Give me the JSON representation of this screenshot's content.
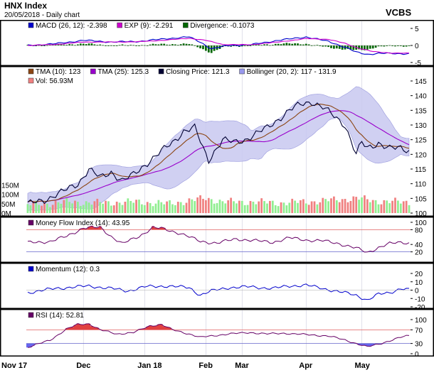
{
  "header": {
    "title": "HNX Index",
    "subtitle": "20/05/2018 - Daily chart",
    "brand": "VCBS"
  },
  "x_axis": {
    "labels": [
      {
        "label": "Nov 17",
        "bar": 0
      },
      {
        "label": "Dec",
        "bar": 20
      },
      {
        "label": "Jan 18",
        "bar": 42
      },
      {
        "label": "Feb",
        "bar": 64
      },
      {
        "label": "Mar",
        "bar": 77
      },
      {
        "label": "Apr",
        "bar": 100
      },
      {
        "label": "May",
        "bar": 120
      }
    ]
  },
  "panels": {
    "macd": {
      "legend": [
        {
          "text": "MACD (26, 12): -2.398",
          "color": "#0000cc"
        },
        {
          "text": "EXP (9): -2.291",
          "color": "#cc00cc"
        },
        {
          "text": "Divergence: -0.1073",
          "color": "#006600"
        }
      ],
      "ticks": [
        "5",
        "0",
        "-5"
      ],
      "range": [
        -5,
        5
      ]
    },
    "price": {
      "legend": [
        {
          "text": "TMA (10): 123",
          "color": "#8b4513"
        },
        {
          "text": "TMA (25): 125.3",
          "color": "#9900cc"
        },
        {
          "text": "Closing Price: 121.3",
          "color": "#000033"
        },
        {
          "text": "Bollinger (20, 2): 117 - 131.9",
          "color": "#9999ee"
        },
        {
          "text": "Vol: 56.93M",
          "color": "#f08080"
        }
      ],
      "price_ticks": [
        "145",
        "140",
        "135",
        "130",
        "125",
        "120",
        "115",
        "110",
        "105",
        "100"
      ],
      "price_range": [
        100,
        145
      ],
      "volume_ticks": [
        "150M",
        "100M",
        "50M",
        "0M"
      ],
      "volume_range": [
        0,
        190
      ]
    },
    "mfi": {
      "legend": [
        {
          "text": "Money Flow Index (14): 43.95",
          "color": "#660066"
        }
      ],
      "ticks": [
        "100",
        "80",
        "40",
        "20"
      ],
      "range": [
        0,
        100
      ]
    },
    "momentum": {
      "legend": [
        {
          "text": "Momentum (12): 0.3",
          "color": "#0000cc"
        }
      ],
      "ticks": [
        "20",
        "10",
        "0",
        "-10",
        "-20"
      ],
      "range": [
        -20,
        20
      ]
    },
    "rsi": {
      "legend": [
        {
          "text": "RSI (14): 52.81",
          "color": "#660066"
        }
      ],
      "ticks": [
        "100",
        "70",
        "30",
        "0"
      ],
      "range": [
        0,
        100
      ]
    }
  },
  "chart_data": {
    "type": "line",
    "bars": 138,
    "close_keypoints": [
      [
        0,
        103
      ],
      [
        6,
        104.5
      ],
      [
        12,
        107
      ],
      [
        18,
        110
      ],
      [
        22,
        115
      ],
      [
        26,
        112
      ],
      [
        30,
        114
      ],
      [
        34,
        111
      ],
      [
        38,
        113
      ],
      [
        44,
        118
      ],
      [
        48,
        121
      ],
      [
        52,
        124
      ],
      [
        56,
        128
      ],
      [
        60,
        129
      ],
      [
        63,
        122
      ],
      [
        65,
        118
      ],
      [
        67,
        121
      ],
      [
        70,
        125
      ],
      [
        74,
        124
      ],
      [
        78,
        125
      ],
      [
        82,
        127
      ],
      [
        86,
        129
      ],
      [
        90,
        132
      ],
      [
        94,
        135
      ],
      [
        98,
        137
      ],
      [
        102,
        138
      ],
      [
        106,
        136
      ],
      [
        110,
        133
      ],
      [
        114,
        130
      ],
      [
        116,
        125
      ],
      [
        118,
        120
      ],
      [
        120,
        124
      ],
      [
        122,
        122
      ],
      [
        126,
        124
      ],
      [
        130,
        122
      ],
      [
        134,
        122
      ],
      [
        137,
        121.3
      ]
    ],
    "volume_keypoints": [
      [
        0,
        45
      ],
      [
        15,
        60
      ],
      [
        25,
        55
      ],
      [
        40,
        60
      ],
      [
        50,
        50
      ],
      [
        60,
        70
      ],
      [
        64,
        80
      ],
      [
        70,
        60
      ],
      [
        80,
        60
      ],
      [
        90,
        55
      ],
      [
        100,
        60
      ],
      [
        110,
        70
      ],
      [
        118,
        80
      ],
      [
        125,
        65
      ],
      [
        137,
        57
      ]
    ],
    "mfi_keypoints": [
      [
        0,
        45
      ],
      [
        8,
        48
      ],
      [
        14,
        62
      ],
      [
        20,
        85
      ],
      [
        26,
        86
      ],
      [
        30,
        62
      ],
      [
        34,
        42
      ],
      [
        40,
        62
      ],
      [
        45,
        86
      ],
      [
        48,
        83
      ],
      [
        55,
        70
      ],
      [
        62,
        48
      ],
      [
        68,
        44
      ],
      [
        75,
        55
      ],
      [
        82,
        50
      ],
      [
        88,
        46
      ],
      [
        94,
        58
      ],
      [
        100,
        52
      ],
      [
        106,
        50
      ],
      [
        112,
        42
      ],
      [
        118,
        30
      ],
      [
        122,
        18
      ],
      [
        126,
        32
      ],
      [
        130,
        42
      ],
      [
        134,
        46
      ],
      [
        137,
        44
      ]
    ],
    "momentum_keypoints": [
      [
        0,
        -3
      ],
      [
        10,
        2
      ],
      [
        18,
        4
      ],
      [
        22,
        5
      ],
      [
        30,
        2
      ],
      [
        36,
        -1
      ],
      [
        42,
        4
      ],
      [
        50,
        5
      ],
      [
        58,
        3
      ],
      [
        62,
        -6
      ],
      [
        66,
        -1
      ],
      [
        72,
        3
      ],
      [
        80,
        4
      ],
      [
        88,
        2
      ],
      [
        94,
        5
      ],
      [
        100,
        6
      ],
      [
        106,
        2
      ],
      [
        112,
        -2
      ],
      [
        118,
        -6
      ],
      [
        122,
        -12
      ],
      [
        126,
        -5
      ],
      [
        130,
        -3
      ],
      [
        134,
        2
      ],
      [
        137,
        0.3
      ]
    ],
    "rsi_keypoints": [
      [
        0,
        18
      ],
      [
        8,
        40
      ],
      [
        14,
        72
      ],
      [
        18,
        86
      ],
      [
        22,
        88
      ],
      [
        26,
        70
      ],
      [
        32,
        58
      ],
      [
        38,
        62
      ],
      [
        44,
        82
      ],
      [
        48,
        86
      ],
      [
        52,
        70
      ],
      [
        58,
        58
      ],
      [
        62,
        48
      ],
      [
        66,
        52
      ],
      [
        72,
        58
      ],
      [
        80,
        62
      ],
      [
        86,
        58
      ],
      [
        92,
        60
      ],
      [
        100,
        56
      ],
      [
        108,
        52
      ],
      [
        114,
        40
      ],
      [
        118,
        30
      ],
      [
        122,
        20
      ],
      [
        126,
        28
      ],
      [
        130,
        38
      ],
      [
        134,
        48
      ],
      [
        137,
        53
      ]
    ],
    "macd_keypoints": [
      [
        0,
        0
      ],
      [
        10,
        0.5
      ],
      [
        20,
        1.5
      ],
      [
        30,
        1
      ],
      [
        40,
        1.2
      ],
      [
        50,
        2
      ],
      [
        58,
        2.5
      ],
      [
        62,
        1
      ],
      [
        66,
        -1
      ],
      [
        72,
        0
      ],
      [
        80,
        0.2
      ],
      [
        90,
        1.5
      ],
      [
        100,
        2.5
      ],
      [
        108,
        1.2
      ],
      [
        114,
        -0.5
      ],
      [
        118,
        -2
      ],
      [
        122,
        -2.6
      ],
      [
        126,
        -2.3
      ],
      [
        132,
        -2.4
      ],
      [
        137,
        -2.398
      ]
    ],
    "exp_keypoints": [
      [
        0,
        0
      ],
      [
        10,
        0.3
      ],
      [
        20,
        1
      ],
      [
        30,
        1
      ],
      [
        40,
        1.1
      ],
      [
        50,
        1.6
      ],
      [
        58,
        2.1
      ],
      [
        64,
        1.5
      ],
      [
        70,
        0.3
      ],
      [
        80,
        0.2
      ],
      [
        90,
        1
      ],
      [
        100,
        2
      ],
      [
        108,
        1.8
      ],
      [
        114,
        0.6
      ],
      [
        118,
        -0.6
      ],
      [
        124,
        -1.8
      ],
      [
        130,
        -2.2
      ],
      [
        137,
        -2.291
      ]
    ]
  }
}
